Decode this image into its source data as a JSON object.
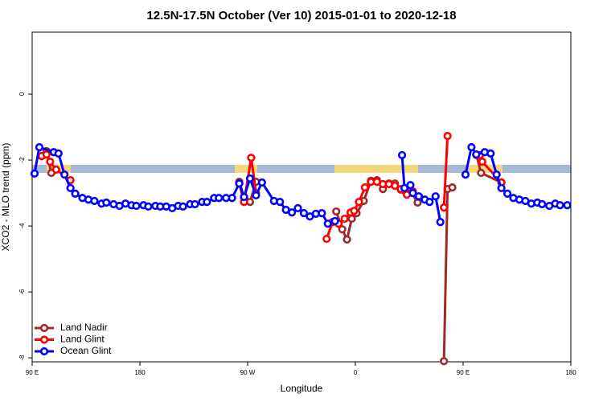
{
  "chart_data": {
    "type": "line",
    "title": "12.5N-17.5N October (Ver 10)   2015-01-01 to 2020-12-18",
    "x_label": "Longitude",
    "y_label": "XCO2 - MLO trend (ppm)",
    "xlim": [
      90,
      540
    ],
    "ylim": [
      -8.12,
      1.88
    ],
    "xticks": [
      {
        "value": 90,
        "label": "90 E"
      },
      180,
      {
        "value": 270,
        "label": "90 W"
      },
      {
        "value": 360,
        "label": "0"
      },
      {
        "value": 450,
        "label": "90 E"
      },
      {
        "value": 540,
        "label": "180"
      }
    ],
    "yticks": [
      0,
      -2,
      -4,
      -6,
      -8
    ],
    "legend": "bottom-left",
    "series": [
      {
        "name": "Land Nadir",
        "color": "#a0282a",
        "x": [
          98,
          102,
          106,
          null,
          263,
          267,
          272,
          277,
          null,
          344,
          349,
          353,
          357,
          361,
          367,
          373,
          378,
          383,
          388,
          393,
          398,
          402,
          407,
          412,
          null,
          434,
          437,
          441,
          null,
          461,
          465,
          482
        ],
        "values": [
          -1.88,
          -1.73,
          -2.39,
          null,
          -2.66,
          -3.12,
          -3.27,
          -2.66,
          null,
          -3.56,
          -4.1,
          -4.41,
          -3.78,
          -3.61,
          -3.24,
          -2.63,
          -2.61,
          -2.88,
          -2.71,
          -2.71,
          -2.9,
          -2.95,
          -3.0,
          -3.29,
          null,
          -8.1,
          -2.88,
          -2.83,
          null,
          -1.83,
          -2.39,
          -2.68
        ]
      },
      {
        "name": "Land Glint",
        "color": "#ff0000",
        "x": [
          98,
          102,
          105,
          110,
          122,
          null,
          263,
          267,
          273,
          277,
          null,
          336,
          341,
          346,
          351,
          356,
          359,
          363,
          368,
          373,
          378,
          383,
          388,
          393,
          398,
          403,
          408,
          null,
          434,
          437,
          null,
          461,
          464,
          466,
          482
        ],
        "values": [
          -1.88,
          -1.83,
          -2.05,
          -2.29,
          -2.61,
          null,
          -2.71,
          -3.27,
          -1.93,
          -3.0,
          null,
          -4.39,
          -3.88,
          -3.93,
          -3.78,
          -3.59,
          -3.54,
          -3.27,
          -2.83,
          -2.66,
          -2.66,
          -2.73,
          -2.73,
          -2.78,
          -2.88,
          -3.05,
          -2.95,
          null,
          -3.44,
          -1.27,
          null,
          -1.85,
          -1.85,
          -2.05,
          -2.68
        ]
      },
      {
        "name": "Ocean Glint",
        "color": "#0000ff",
        "x": [
          92,
          96,
          108,
          112,
          117,
          122,
          126,
          132,
          137,
          142,
          148,
          152,
          158,
          163,
          168,
          173,
          177,
          183,
          187,
          193,
          197,
          202,
          207,
          212,
          216,
          222,
          226,
          232,
          236,
          242,
          246,
          252,
          257,
          263,
          267,
          272,
          277,
          282,
          292,
          297,
          302,
          307,
          312,
          317,
          322,
          327,
          332,
          337,
          343,
          null,
          399,
          401,
          406,
          408,
          413,
          418,
          422,
          427,
          431,
          null,
          452,
          457,
          461,
          468,
          473,
          478,
          482,
          487,
          492,
          497,
          502,
          507,
          512,
          516,
          522,
          527,
          531,
          537
        ],
        "values": [
          -2.41,
          -1.61,
          -1.76,
          -1.8,
          -2.44,
          -2.85,
          -3.02,
          -3.15,
          -3.2,
          -3.24,
          -3.32,
          -3.29,
          -3.34,
          -3.39,
          -3.32,
          -3.37,
          -3.39,
          -3.37,
          -3.41,
          -3.39,
          -3.41,
          -3.41,
          -3.46,
          -3.39,
          -3.41,
          -3.34,
          -3.34,
          -3.27,
          -3.27,
          -3.15,
          -3.15,
          -3.15,
          -3.15,
          -2.71,
          -3.12,
          -2.56,
          -3.07,
          -2.68,
          -3.24,
          -3.27,
          -3.51,
          -3.59,
          -3.46,
          -3.61,
          -3.71,
          -3.63,
          -3.61,
          -3.93,
          -3.85,
          null,
          -1.85,
          -2.85,
          -2.76,
          -3.0,
          -3.1,
          -3.2,
          -3.27,
          -3.1,
          -3.88,
          null,
          -2.44,
          -1.61,
          -1.83,
          -1.76,
          -1.8,
          -2.44,
          -2.85,
          -3.02,
          -3.15,
          -3.2,
          -3.24,
          -3.32,
          -3.29,
          -3.34,
          -3.39,
          -3.32,
          -3.37,
          -3.37
        ]
      }
    ]
  }
}
